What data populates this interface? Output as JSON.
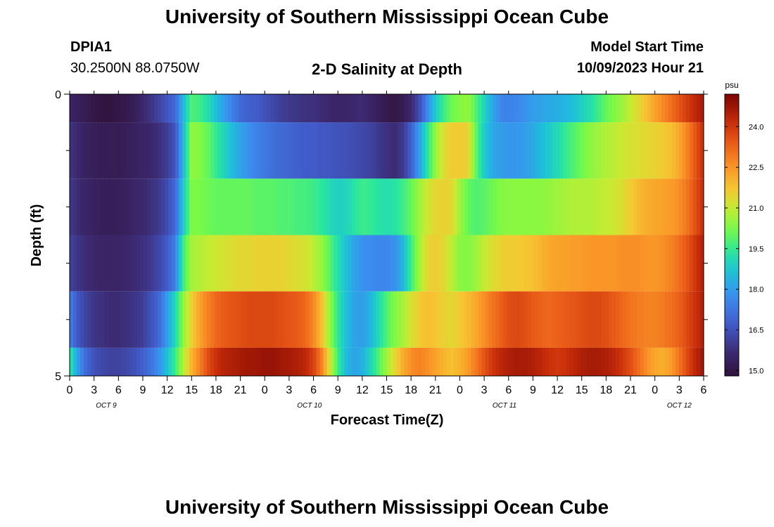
{
  "page": {
    "title_top": "University of Southern Mississippi Ocean Cube",
    "title_bottom": "University of Southern Mississippi Ocean Cube",
    "station": "DPIA1",
    "coords": "30.2500N  88.0750W",
    "plot_title": "2-D Salinity at Depth",
    "model_label": "Model Start Time",
    "model_time": "10/09/2023 Hour 21"
  },
  "chart_data": {
    "type": "heatmap",
    "title": "2-D Salinity at Depth",
    "xlabel": "Forecast Time(Z)",
    "ylabel": "Depth (ft)",
    "units": "psu",
    "x_hours_start": 0,
    "x_hours_end": 78,
    "x_tick_labels": [
      "0",
      "3",
      "6",
      "9",
      "12",
      "15",
      "18",
      "21",
      "0",
      "3",
      "6",
      "9",
      "12",
      "15",
      "18",
      "21",
      "0",
      "3",
      "6",
      "9",
      "12",
      "15",
      "18",
      "21",
      "0",
      "3",
      "6"
    ],
    "day_labels": [
      "OCT 9",
      "OCT 10",
      "OCT 11",
      "OCT 12"
    ],
    "y_tick_labels": [
      "0",
      "5"
    ],
    "ylim": [
      0,
      5
    ],
    "colorbar": {
      "min": 14.8,
      "max": 25.2,
      "ticks": [
        "15.0",
        "16.5",
        "18.0",
        "19.5",
        "21.0",
        "22.5",
        "24.0"
      ]
    },
    "knot_hours": [
      0,
      1,
      2,
      3,
      4,
      5,
      6,
      7,
      8,
      9,
      10,
      11,
      12,
      13,
      14,
      15,
      16,
      17,
      18,
      19,
      20,
      21,
      22,
      23,
      24,
      25,
      26,
      27,
      28,
      29,
      30,
      31,
      32,
      33,
      34,
      35,
      36,
      37,
      38,
      39,
      40,
      41,
      42,
      43,
      44,
      45,
      46,
      47,
      48,
      49,
      50,
      51,
      52,
      53,
      54,
      55,
      56,
      57,
      58,
      59,
      60,
      61,
      62,
      63,
      64,
      65,
      66,
      67,
      68,
      69,
      70,
      71,
      72,
      73,
      74,
      75,
      76,
      77,
      78
    ],
    "layers": [
      {
        "depth_range": "0.0-0.5 ft",
        "values": [
          15.5,
          15.3,
          15.2,
          15.0,
          14.9,
          14.9,
          15.0,
          15.1,
          15.3,
          15.6,
          15.9,
          16.2,
          16.6,
          17.0,
          18.5,
          19.8,
          19.6,
          19.2,
          18.6,
          18.0,
          17.5,
          17.0,
          16.8,
          16.7,
          16.5,
          16.3,
          16.1,
          16.0,
          15.9,
          15.8,
          15.8,
          15.7,
          15.6,
          15.5,
          15.5,
          15.6,
          15.7,
          15.5,
          15.3,
          15.1,
          15.0,
          15.2,
          15.6,
          16.4,
          17.6,
          18.8,
          19.6,
          20.1,
          20.3,
          20.5,
          19.8,
          19.0,
          18.2,
          17.6,
          17.5,
          17.6,
          17.8,
          18.0,
          18.1,
          18.2,
          18.3,
          18.4,
          18.6,
          18.9,
          19.2,
          19.6,
          20.0,
          20.3,
          20.6,
          21.0,
          21.4,
          21.8,
          22.3,
          22.7,
          23.1,
          23.5,
          23.9,
          24.3,
          24.6
        ]
      },
      {
        "depth_range": "0.5-1.5 ft",
        "values": [
          15.9,
          15.6,
          15.4,
          15.3,
          15.2,
          15.2,
          15.2,
          15.3,
          15.4,
          15.5,
          15.6,
          15.8,
          16.1,
          16.6,
          18.5,
          20.5,
          20.3,
          20.0,
          19.5,
          19.0,
          18.5,
          18.1,
          17.8,
          17.5,
          17.3,
          17.1,
          17.0,
          16.9,
          16.8,
          16.7,
          16.7,
          16.6,
          16.6,
          16.5,
          16.5,
          16.4,
          16.3,
          16.2,
          16.0,
          15.8,
          15.7,
          16.0,
          16.8,
          18.0,
          19.3,
          20.5,
          21.3,
          21.6,
          21.6,
          21.5,
          20.0,
          18.8,
          18.2,
          18.0,
          17.9,
          17.9,
          18.0,
          18.2,
          18.5,
          18.8,
          19.1,
          19.5,
          19.8,
          20.1,
          20.4,
          20.6,
          20.8,
          20.9,
          21.1,
          21.2,
          21.3,
          21.4,
          21.5,
          21.6,
          21.8,
          22.2,
          22.8,
          23.5,
          24.2
        ]
      },
      {
        "depth_range": "1.5-2.5 ft",
        "values": [
          16.0,
          15.7,
          15.5,
          15.4,
          15.3,
          15.3,
          15.3,
          15.4,
          15.5,
          15.6,
          15.8,
          16.0,
          16.4,
          17.0,
          18.8,
          20.3,
          20.2,
          20.1,
          20.0,
          20.0,
          20.0,
          20.0,
          20.0,
          19.9,
          19.9,
          19.9,
          19.8,
          19.8,
          19.7,
          19.7,
          19.6,
          19.4,
          19.1,
          18.9,
          19.0,
          19.3,
          19.6,
          19.5,
          19.3,
          19.2,
          19.3,
          19.6,
          20.0,
          20.6,
          21.1,
          21.4,
          21.5,
          21.4,
          20.6,
          20.0,
          19.8,
          19.9,
          20.1,
          20.3,
          20.4,
          20.4,
          20.4,
          20.4,
          20.4,
          20.5,
          20.6,
          20.7,
          20.8,
          20.8,
          20.8,
          20.9,
          21.0,
          21.1,
          21.3,
          21.6,
          21.9,
          22.1,
          22.2,
          22.3,
          22.4,
          22.6,
          23.0,
          23.6,
          24.2
        ]
      },
      {
        "depth_range": "2.5-3.5 ft",
        "values": [
          16.2,
          15.9,
          15.7,
          15.6,
          15.5,
          15.5,
          15.5,
          15.6,
          15.7,
          15.8,
          16.0,
          16.3,
          16.7,
          17.5,
          19.6,
          20.7,
          20.8,
          21.0,
          21.1,
          21.2,
          21.3,
          21.4,
          21.4,
          21.5,
          21.5,
          21.5,
          21.5,
          21.4,
          21.3,
          21.2,
          20.9,
          20.5,
          19.9,
          19.2,
          18.6,
          18.1,
          17.8,
          17.7,
          17.6,
          17.6,
          17.8,
          18.4,
          19.6,
          20.6,
          21.4,
          21.6,
          21.4,
          20.9,
          20.4,
          20.3,
          20.6,
          21.0,
          21.3,
          21.5,
          21.6,
          21.6,
          21.7,
          21.8,
          22.0,
          22.2,
          22.3,
          22.3,
          22.4,
          22.4,
          22.5,
          22.5,
          22.5,
          22.5,
          22.6,
          22.6,
          22.6,
          22.5,
          22.5,
          22.6,
          22.8,
          23.1,
          23.5,
          24.0,
          24.5
        ]
      },
      {
        "depth_range": "3.5-4.5 ft",
        "values": [
          17.5,
          16.6,
          16.2,
          15.9,
          15.8,
          15.7,
          15.7,
          15.8,
          15.9,
          16.1,
          16.5,
          17.0,
          18.0,
          19.1,
          20.5,
          21.5,
          22.3,
          22.8,
          23.2,
          23.4,
          23.5,
          23.6,
          23.7,
          23.7,
          23.7,
          23.7,
          23.6,
          23.5,
          23.4,
          23.2,
          22.7,
          21.8,
          20.5,
          19.4,
          18.6,
          18.1,
          18.0,
          18.4,
          19.1,
          19.8,
          20.3,
          20.7,
          21.2,
          21.6,
          21.8,
          21.7,
          21.5,
          21.4,
          21.6,
          21.9,
          22.2,
          22.6,
          23.0,
          23.3,
          23.6,
          23.7,
          23.6,
          23.4,
          23.3,
          23.2,
          23.3,
          23.4,
          23.5,
          23.6,
          23.7,
          23.7,
          23.6,
          23.4,
          23.2,
          23.0,
          22.9,
          22.8,
          22.8,
          22.9,
          23.1,
          23.3,
          23.7,
          24.1,
          24.5
        ]
      },
      {
        "depth_range": "4.5-5.0 ft",
        "values": [
          19.5,
          18.0,
          17.0,
          16.5,
          16.3,
          16.2,
          16.2,
          16.3,
          16.5,
          16.8,
          17.2,
          17.8,
          18.6,
          19.6,
          20.8,
          22.0,
          22.8,
          23.6,
          24.1,
          24.4,
          24.5,
          24.6,
          24.7,
          24.7,
          24.8,
          24.8,
          24.7,
          24.6,
          24.5,
          24.3,
          23.8,
          22.8,
          21.2,
          19.6,
          18.5,
          18.1,
          18.3,
          19.0,
          19.8,
          20.6,
          21.4,
          22.1,
          22.6,
          22.8,
          22.6,
          22.3,
          22.0,
          21.8,
          22.0,
          22.4,
          22.9,
          23.5,
          24.0,
          24.3,
          24.5,
          24.6,
          24.6,
          24.5,
          24.3,
          24.1,
          24.0,
          24.1,
          24.3,
          24.5,
          24.6,
          24.6,
          24.5,
          24.3,
          24.0,
          23.6,
          23.1,
          22.6,
          22.2,
          22.1,
          22.4,
          23.0,
          23.7,
          24.3,
          24.7
        ]
      }
    ]
  }
}
